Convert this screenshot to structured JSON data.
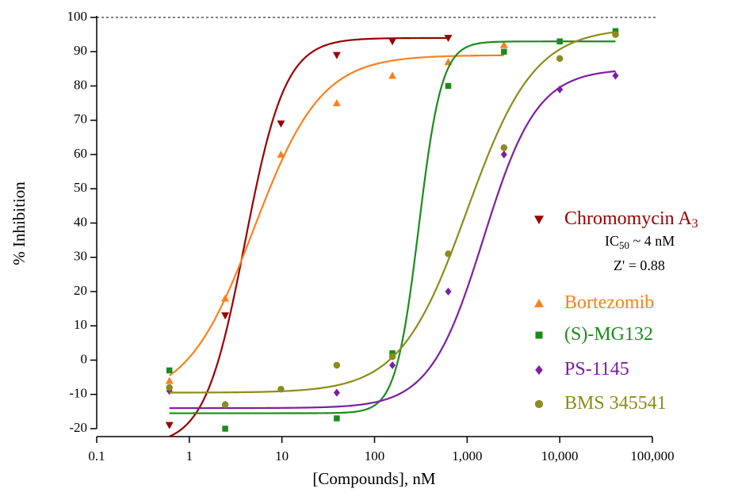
{
  "chart_data": {
    "type": "scatter",
    "x_label": "[Compounds], nM",
    "y_label": "% Inhibition",
    "xscale": "log",
    "xlim": [
      0.1,
      100000
    ],
    "ylim": [
      -20,
      100
    ],
    "xticks": [
      0.1,
      1,
      10,
      100,
      {
        "value": 1000,
        "label": "1,000"
      },
      {
        "value": 10000,
        "label": "10,000"
      },
      {
        "value": 100000,
        "label": "100,000"
      }
    ],
    "yticks": [
      -20,
      -10,
      0,
      10,
      20,
      30,
      40,
      50,
      60,
      70,
      80,
      90,
      100
    ],
    "hline": 100,
    "legend": "right",
    "series": [
      {
        "name": "Chromomycin A",
        "name_sub": "3",
        "color": "#990000",
        "marker": "triangle-down",
        "x": [
          0.61,
          2.44,
          9.77,
          39.1,
          156,
          625
        ],
        "values": [
          -19,
          13,
          69,
          89,
          93,
          94
        ],
        "fit": {
          "bottom": -25,
          "top": 94,
          "ec50": 4,
          "hill": 2,
          "range": [
            0.61,
            625
          ]
        }
      },
      {
        "name": "Bortezomib",
        "color": "#ff7f1a",
        "marker": "triangle-up",
        "x": [
          0.61,
          2.44,
          9.77,
          39.1,
          156,
          625,
          2500
        ],
        "values": [
          -6,
          18,
          60,
          75,
          83,
          87,
          92
        ],
        "fit": {
          "bottom": -12,
          "top": 89,
          "ec50": 5,
          "hill": 1.2,
          "range": [
            0.61,
            2500
          ]
        }
      },
      {
        "name": "(S)-MG132",
        "color": "#1a8c1a",
        "marker": "square",
        "x": [
          0.61,
          2.44,
          39.1,
          156,
          625,
          2500,
          10000,
          40000
        ],
        "values": [
          -3,
          -20,
          -17,
          2,
          80,
          90,
          93,
          96
        ],
        "fit": {
          "bottom": -15.5,
          "top": 93,
          "ec50": 300,
          "hill": 3.5,
          "range": [
            0.61,
            40000
          ]
        }
      },
      {
        "name": "PS-1145",
        "color": "#7b1fa2",
        "marker": "diamond",
        "x": [
          0.61,
          2.44,
          39.1,
          156,
          625,
          2500,
          10000,
          40000
        ],
        "values": [
          -9,
          -13,
          -9.5,
          -1.5,
          20,
          60,
          79,
          83
        ],
        "fit": {
          "bottom": -14,
          "top": 85,
          "ec50": 1500,
          "hill": 1.5,
          "range": [
            0.61,
            40000
          ]
        }
      },
      {
        "name": "BMS 345541",
        "color": "#8c8c1a",
        "marker": "circle",
        "x": [
          0.61,
          2.44,
          9.77,
          39.1,
          156,
          625,
          2500,
          10000,
          40000
        ],
        "values": [
          -8,
          -13,
          -8.5,
          -1.5,
          1,
          31,
          62,
          88,
          95
        ],
        "fit": {
          "bottom": -9.5,
          "top": 97,
          "ec50": 1000,
          "hill": 1.2,
          "range": [
            0.61,
            40000
          ]
        }
      }
    ],
    "annotations": {
      "ic_prefix": "IC",
      "ic_sub": "50",
      "ic_suffix": " ~ 4 nM",
      "z": "Z' = 0.88"
    }
  }
}
